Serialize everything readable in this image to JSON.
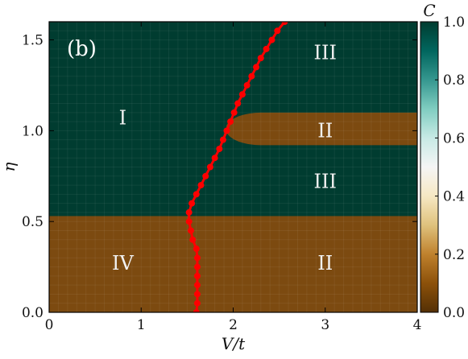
{
  "chart_data": {
    "type": "heatmap",
    "panel_label": "(b)",
    "xlabel": "V/t",
    "ylabel": "η",
    "xlim": [
      0,
      4
    ],
    "ylim": [
      0,
      1.6
    ],
    "xticks": [
      "0",
      "1",
      "2",
      "3",
      "4"
    ],
    "yticks": [
      "0.0",
      "0.5",
      "1.0",
      "1.5"
    ],
    "colorbar": {
      "label": "C",
      "range": [
        0,
        1
      ],
      "ticks": [
        "0.0",
        "0.2",
        "0.4",
        "0.6",
        "0.8",
        "1.0"
      ],
      "colormap": "BrBG"
    },
    "regions": [
      {
        "label": "I",
        "C": 1.0,
        "label_at": [
          0.8,
          1.07
        ]
      },
      {
        "label": "III",
        "C": 1.0,
        "label_at": [
          3.0,
          1.43
        ]
      },
      {
        "label": "II",
        "C": 0.0,
        "label_at": [
          3.0,
          1.0
        ]
      },
      {
        "label": "III",
        "C": 1.0,
        "label_at": [
          3.0,
          0.72
        ]
      },
      {
        "label": "IV",
        "C": 0.0,
        "label_at": [
          0.8,
          0.27
        ]
      },
      {
        "label": "II",
        "C": 0.0,
        "label_at": [
          3.0,
          0.27
        ]
      }
    ],
    "phase_blocks": [
      {
        "C": 0.0,
        "x": [
          0,
          4
        ],
        "y": [
          0,
          0.53
        ]
      },
      {
        "C": 0.0,
        "shape": "lobe",
        "x_left": 1.95,
        "x_right": 4,
        "y_center": 1.01,
        "half_height": 0.09
      }
    ],
    "series": [
      {
        "type": "line",
        "color": "#ff0000",
        "marker": "circle",
        "points": [
          [
            1.6,
            0.0
          ],
          [
            1.61,
            0.05
          ],
          [
            1.61,
            0.1
          ],
          [
            1.61,
            0.15
          ],
          [
            1.61,
            0.2
          ],
          [
            1.61,
            0.25
          ],
          [
            1.61,
            0.3
          ],
          [
            1.6,
            0.35
          ],
          [
            1.56,
            0.4
          ],
          [
            1.54,
            0.45
          ],
          [
            1.52,
            0.5
          ],
          [
            1.52,
            0.55
          ],
          [
            1.55,
            0.6
          ],
          [
            1.6,
            0.65
          ],
          [
            1.65,
            0.7
          ],
          [
            1.7,
            0.75
          ],
          [
            1.75,
            0.8
          ],
          [
            1.8,
            0.85
          ],
          [
            1.85,
            0.9
          ],
          [
            1.89,
            0.95
          ],
          [
            1.93,
            1.0
          ],
          [
            1.97,
            1.05
          ],
          [
            2.01,
            1.1
          ],
          [
            2.05,
            1.15
          ],
          [
            2.1,
            1.2
          ],
          [
            2.15,
            1.25
          ],
          [
            2.2,
            1.3
          ],
          [
            2.25,
            1.35
          ],
          [
            2.3,
            1.4
          ],
          [
            2.36,
            1.45
          ],
          [
            2.42,
            1.5
          ],
          [
            2.48,
            1.55
          ],
          [
            2.56,
            1.6
          ]
        ]
      }
    ]
  },
  "colors": {
    "topological": "#003c30",
    "trivial": "#7c4a10",
    "boundary": "#ff0000"
  }
}
